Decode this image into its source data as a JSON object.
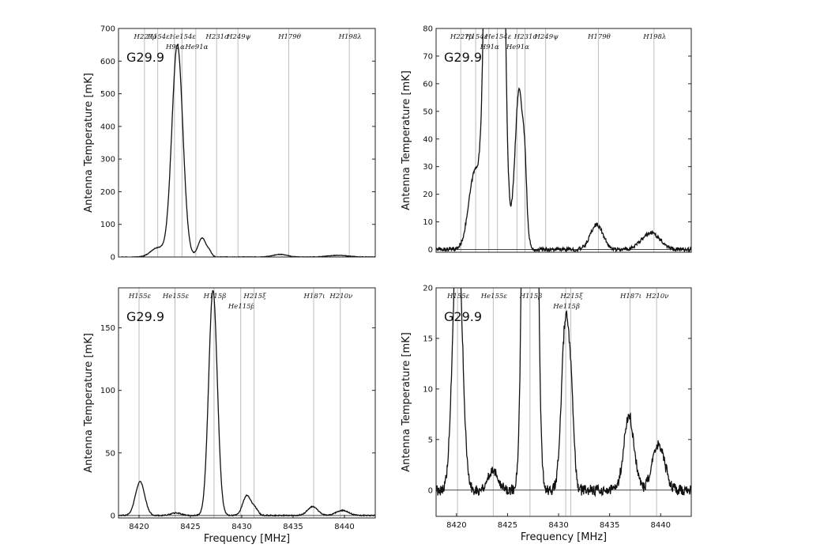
{
  "chart_data": [
    {
      "type": "line",
      "panel_label": "G29.9",
      "xlabel": "",
      "ylabel": "Antenna Temperature [mK]",
      "xlim": [
        8403.5,
        8448
      ],
      "ylim": [
        0,
        700
      ],
      "yticks": [
        0,
        100,
        200,
        300,
        400,
        500,
        600,
        700
      ],
      "xticks": [],
      "line_markers": [
        {
          "label": "H227ρ",
          "x": 8408.0,
          "row": 0
        },
        {
          "label": "H154ε",
          "x": 8410.3,
          "row": 0
        },
        {
          "label": "He154ε",
          "x": 8414.5,
          "row": 0
        },
        {
          "label": "H91α",
          "x": 8413.2,
          "row": 1
        },
        {
          "label": "H231σ",
          "x": 8420.5,
          "row": 0
        },
        {
          "label": "He91α",
          "x": 8416.9,
          "row": 1
        },
        {
          "label": "H249ψ",
          "x": 8424.2,
          "row": 0
        },
        {
          "label": "H179θ",
          "x": 8433.0,
          "row": 0
        },
        {
          "label": "H198λ",
          "x": 8443.5,
          "row": 0
        }
      ],
      "peaks": [
        {
          "x": 8410.3,
          "amp": 28,
          "w": 1.2
        },
        {
          "x": 8413.7,
          "amp": 650,
          "w": 0.95
        },
        {
          "x": 8418.0,
          "amp": 58,
          "w": 0.7
        },
        {
          "x": 8419.3,
          "amp": 12,
          "w": 0.4
        },
        {
          "x": 8431.5,
          "amp": 8,
          "w": 1.2
        },
        {
          "x": 8441.5,
          "amp": 5,
          "w": 1.8
        }
      ],
      "noise": 0.8
    },
    {
      "type": "line",
      "panel_label": "G29.9",
      "xlabel": "",
      "ylabel": "Antenna Temperature [mK]",
      "xlim": [
        8403.5,
        8448
      ],
      "ylim": [
        -1,
        80
      ],
      "yticks": [
        0,
        10,
        20,
        30,
        40,
        50,
        60,
        70,
        80
      ],
      "xticks": [],
      "line_markers": [
        {
          "label": "H227ρ",
          "x": 8407.8,
          "row": 0
        },
        {
          "label": "H154ε",
          "x": 8410.4,
          "row": 0
        },
        {
          "label": "He154ε",
          "x": 8414.2,
          "row": 0
        },
        {
          "label": "H91α",
          "x": 8412.7,
          "row": 1
        },
        {
          "label": "H231σ",
          "x": 8419.0,
          "row": 0
        },
        {
          "label": "He91α",
          "x": 8417.6,
          "row": 1
        },
        {
          "label": "H249ψ",
          "x": 8422.6,
          "row": 0
        },
        {
          "label": "H179θ",
          "x": 8431.8,
          "row": 0
        },
        {
          "label": "H198λ",
          "x": 8441.5,
          "row": 0
        }
      ],
      "peaks": [
        {
          "x": 8410.3,
          "amp": 28,
          "w": 1.1
        },
        {
          "x": 8413.7,
          "amp": 650,
          "w": 0.95
        },
        {
          "x": 8418.0,
          "amp": 58,
          "w": 0.75
        },
        {
          "x": 8419.0,
          "amp": 14,
          "w": 0.3
        },
        {
          "x": 8431.5,
          "amp": 9,
          "w": 1.1
        },
        {
          "x": 8441.0,
          "amp": 6,
          "w": 1.6
        }
      ],
      "noise": 0.7
    },
    {
      "type": "line",
      "panel_label": "G29.9",
      "xlabel": "Frequency [MHz]",
      "ylabel": "Antenna Temperature [mK]",
      "xlim": [
        8418.0,
        8443.0
      ],
      "ylim": [
        -2,
        182
      ],
      "yticks": [
        0,
        50,
        100,
        150
      ],
      "xticks": [
        8420,
        8425,
        8430,
        8435,
        8440
      ],
      "line_markers": [
        {
          "label": "H155ε",
          "x": 8420.0,
          "row": 0
        },
        {
          "label": "He155ε",
          "x": 8423.5,
          "row": 0
        },
        {
          "label": "H115β",
          "x": 8427.3,
          "row": 0
        },
        {
          "label": "He115β",
          "x": 8429.9,
          "row": 1
        },
        {
          "label": "H215ξ",
          "x": 8431.2,
          "row": 0
        },
        {
          "label": "H187ι",
          "x": 8437.0,
          "row": 0
        },
        {
          "label": "H210ν",
          "x": 8439.6,
          "row": 0
        }
      ],
      "peaks": [
        {
          "x": 8420.1,
          "amp": 27,
          "w": 0.45
        },
        {
          "x": 8423.6,
          "amp": 2,
          "w": 0.5
        },
        {
          "x": 8427.2,
          "amp": 180,
          "w": 0.42
        },
        {
          "x": 8430.5,
          "amp": 16,
          "w": 0.4
        },
        {
          "x": 8431.3,
          "amp": 5,
          "w": 0.3
        },
        {
          "x": 8436.9,
          "amp": 7,
          "w": 0.5
        },
        {
          "x": 8439.8,
          "amp": 4,
          "w": 0.6
        }
      ],
      "noise": 0.4
    },
    {
      "type": "line",
      "panel_label": "G29.9",
      "xlabel": "Frequency [MHz]",
      "ylabel": "Antenna Temperature [mK]",
      "xlim": [
        8418.0,
        8443.0
      ],
      "ylim": [
        -2.6,
        20
      ],
      "yticks": [
        0,
        5,
        10,
        15,
        20
      ],
      "xticks": [
        8420,
        8425,
        8430,
        8435,
        8440
      ],
      "line_markers": [
        {
          "label": "H155ε",
          "x": 8420.1,
          "row": 0
        },
        {
          "label": "He155ε",
          "x": 8423.6,
          "row": 0
        },
        {
          "label": "H115β",
          "x": 8427.2,
          "row": 0
        },
        {
          "label": "He115β",
          "x": 8430.7,
          "row": 1
        },
        {
          "label": "H215ξ",
          "x": 8431.2,
          "row": 0
        },
        {
          "label": "H187ι",
          "x": 8437.0,
          "row": 0
        },
        {
          "label": "H210ν",
          "x": 8439.6,
          "row": 0
        }
      ],
      "peaks": [
        {
          "x": 8420.1,
          "amp": 27,
          "w": 0.45
        },
        {
          "x": 8423.6,
          "amp": 2,
          "w": 0.5
        },
        {
          "x": 8427.2,
          "amp": 180,
          "w": 0.42
        },
        {
          "x": 8430.7,
          "amp": 17,
          "w": 0.4
        },
        {
          "x": 8431.3,
          "amp": 5,
          "w": 0.25
        },
        {
          "x": 8436.9,
          "amp": 7.3,
          "w": 0.5
        },
        {
          "x": 8439.8,
          "amp": 4.5,
          "w": 0.6
        }
      ],
      "noise": 0.55
    }
  ],
  "colors": {
    "trace": "#111111",
    "marker_line": "#bdbdbd",
    "zero_line": "#444444",
    "axes": "#222222"
  }
}
